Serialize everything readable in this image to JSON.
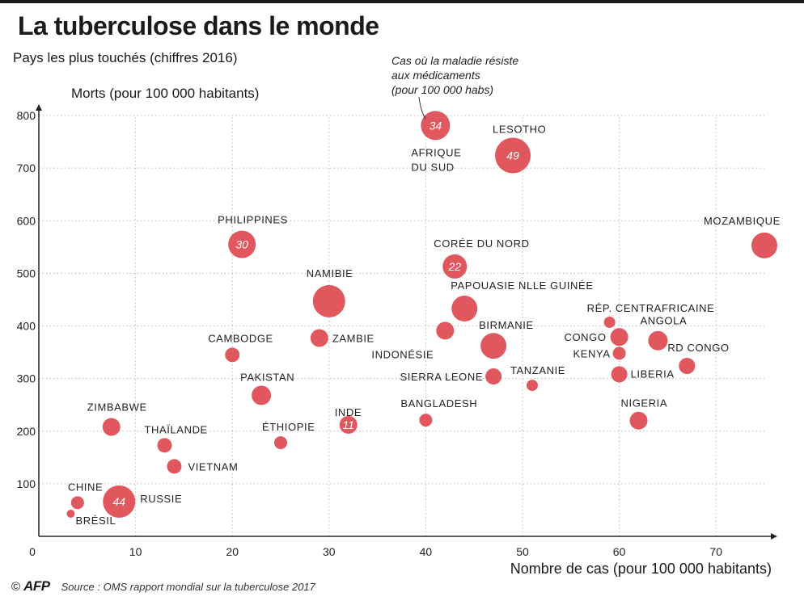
{
  "header": {
    "title": "La tuberculose dans le monde",
    "subtitle": "Pays les plus touchés (chiffres 2016)"
  },
  "footer": {
    "copyright": "©",
    "logo": "AFP",
    "source": "Source : OMS rapport mondial sur la tuberculose 2017"
  },
  "colors": {
    "bubble": "#e0575e",
    "grid": "#b8b8b8",
    "axis": "#222222"
  },
  "chart_data": {
    "type": "scatter",
    "title": "La tuberculose dans le monde",
    "subtitle": "Pays les plus touchés (chiffres 2016)",
    "xlabel": "Nombre de cas (pour 100 000 habitants)",
    "ylabel": "Morts (pour 100 000 habitants)",
    "xlim": [
      0,
      75
    ],
    "ylim": [
      0,
      800
    ],
    "xticks": [
      0,
      10,
      20,
      30,
      40,
      50,
      60,
      70
    ],
    "yticks": [
      100,
      200,
      300,
      400,
      500,
      600,
      700,
      800
    ],
    "grid": true,
    "size_note": "Cas où la maladie résiste aux médicaments (pour 100 000 habs)",
    "size_note_lines": [
      "Cas où la maladie résiste",
      "aux médicaments",
      "(pour 100 000 habs)"
    ],
    "points": [
      {
        "label": "Afrique du sud",
        "label_lines": [
          "Afrique",
          "du sud"
        ],
        "x": 41,
        "y": 781,
        "resistant": 34,
        "r": 18
      },
      {
        "label": "Lesotho",
        "x": 49,
        "y": 724,
        "resistant": 49,
        "r": 22
      },
      {
        "label": "Mozambique",
        "x": 75,
        "y": 553,
        "r": 16
      },
      {
        "label": "Philippines",
        "x": 21,
        "y": 555,
        "resistant": 30,
        "r": 17
      },
      {
        "label": "Corée du nord",
        "x": 43,
        "y": 513,
        "resistant": 22,
        "r": 15
      },
      {
        "label": "Namibie",
        "x": 30,
        "y": 447,
        "r": 20
      },
      {
        "label": "Papouasie Nlle Guinée",
        "x": 44,
        "y": 433,
        "r": 16
      },
      {
        "label": "Rép. centrafricaine",
        "x": 59,
        "y": 407,
        "r": 7
      },
      {
        "label": "Birmanie",
        "x": 47,
        "y": 362,
        "r": 16
      },
      {
        "label": "Angola",
        "x": 64,
        "y": 372,
        "r": 12
      },
      {
        "label": "Congo",
        "x": 60,
        "y": 379,
        "r": 11
      },
      {
        "label": "Indonésie",
        "x": 42,
        "y": 391,
        "r": 11
      },
      {
        "label": "Zambie",
        "x": 29,
        "y": 377,
        "r": 11
      },
      {
        "label": "Cambodge",
        "x": 20,
        "y": 345,
        "r": 9
      },
      {
        "label": "Kenya",
        "x": 60,
        "y": 348,
        "r": 8
      },
      {
        "label": "RD Congo",
        "x": 67,
        "y": 324,
        "r": 10
      },
      {
        "label": "Sierra Leone",
        "x": 47,
        "y": 304,
        "r": 10
      },
      {
        "label": "Liberia",
        "x": 60,
        "y": 308,
        "r": 10
      },
      {
        "label": "Tanzanie",
        "x": 51,
        "y": 287,
        "r": 7
      },
      {
        "label": "Pakistan",
        "x": 23,
        "y": 268,
        "r": 12
      },
      {
        "label": "Bangladesh",
        "x": 40,
        "y": 221,
        "r": 8
      },
      {
        "label": "Nigeria",
        "x": 62,
        "y": 220,
        "r": 11
      },
      {
        "label": "Inde",
        "x": 32,
        "y": 212,
        "resistant": 11,
        "r": 11
      },
      {
        "label": "Zimbabwe",
        "x": 7.5,
        "y": 208,
        "r": 11
      },
      {
        "label": "Éthiopie",
        "x": 25,
        "y": 178,
        "r": 8
      },
      {
        "label": "Thaïlande",
        "x": 13,
        "y": 173,
        "r": 9
      },
      {
        "label": "Vietnam",
        "x": 14,
        "y": 133,
        "r": 9
      },
      {
        "label": "Russie",
        "x": 8.3,
        "y": 66,
        "resistant": 44,
        "r": 20
      },
      {
        "label": "Chine",
        "x": 4,
        "y": 64,
        "r": 8
      },
      {
        "label": "Brésil",
        "x": 3.3,
        "y": 43,
        "r": 5
      }
    ]
  }
}
